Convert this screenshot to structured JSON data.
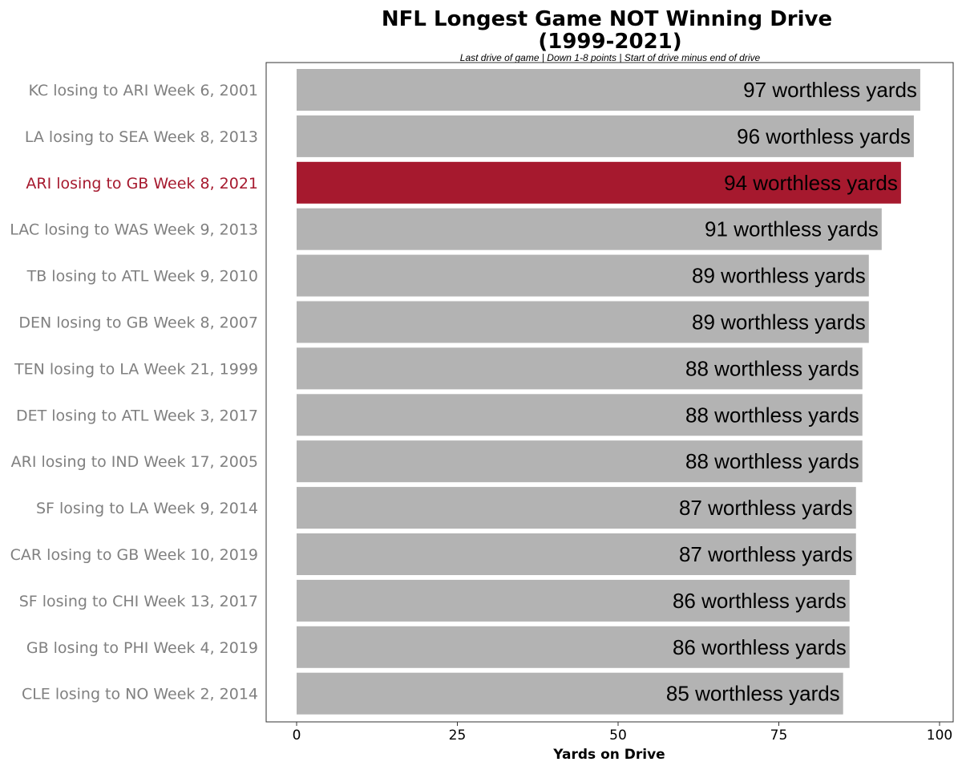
{
  "chart_data": {
    "type": "bar",
    "orientation": "horizontal",
    "title_lines": [
      "NFL Longest Game NOT Winning Drive",
      "(1999-2021)"
    ],
    "subtitle": "Last drive of game | Down 1-8 points | Start of drive minus end of drive",
    "xlabel": "Yards on Drive",
    "ylabel": "",
    "xlim": [
      0,
      100
    ],
    "xticks": [
      0,
      25,
      50,
      75,
      100
    ],
    "bar_label_suffix": " worthless yards",
    "categories": [
      "KC losing to ARI Week 6, 2001",
      "LA losing to SEA Week 8, 2013",
      "ARI losing to GB Week 8, 2021",
      "LAC losing to WAS Week 9, 2013",
      "TB losing to ATL Week 9, 2010",
      "DEN losing to GB Week 8, 2007",
      "TEN losing to LA Week 21, 1999",
      "DET losing to ATL Week 3, 2017",
      "ARI losing to IND Week 17, 2005",
      "SF losing to LA Week 9, 2014",
      "CAR losing to GB Week 10, 2019",
      "SF losing to CHI Week 13, 2017",
      "GB losing to PHI Week 4, 2019",
      "CLE losing to NO Week 2, 2014"
    ],
    "values": [
      97,
      96,
      94,
      91,
      89,
      89,
      88,
      88,
      88,
      87,
      87,
      86,
      86,
      85
    ],
    "highlight_index": 2,
    "colors": {
      "default_bar": "#b3b3b3",
      "highlight_bar": "#a6192e",
      "default_label": "#808080",
      "highlight_label": "#a6192e"
    },
    "grid": false
  }
}
